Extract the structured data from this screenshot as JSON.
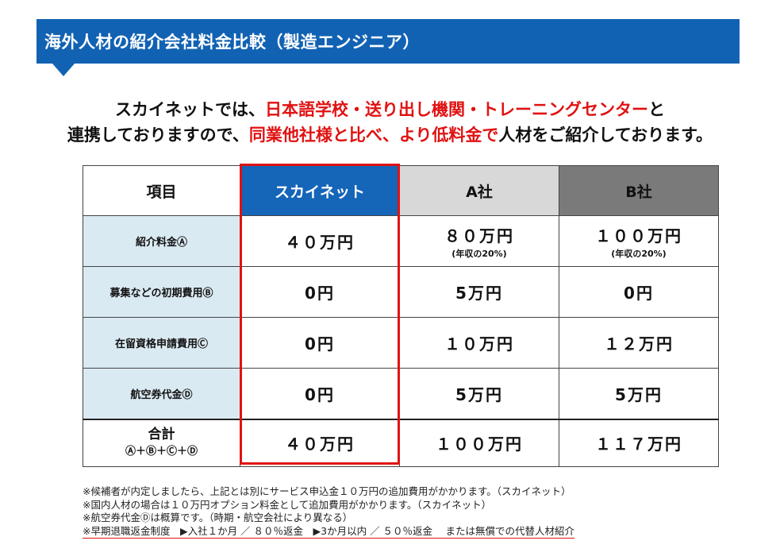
{
  "header": {
    "title": "海外人材の紹介会社料金比較（製造エンジニア）"
  },
  "intro": {
    "line1_a": "スカイネットでは、",
    "line1_red": "日本語学校・送り出し機関・トレーニングセンター",
    "line1_b": "と",
    "line2_a": "連携しておりますので、",
    "line2_red": "同業他社様と比べ、より低料金で",
    "line2_b": "人材をご紹介しております。"
  },
  "table": {
    "headers": {
      "item": "項目",
      "skynet": "スカイネット",
      "a": "A社",
      "b": "B社"
    },
    "rows": [
      {
        "label": "紹介料金Ⓐ",
        "skynet": "４０万円",
        "a": "８０万円",
        "a_sub": "(年収の20%)",
        "b": "１００万円",
        "b_sub": "(年収の20%)"
      },
      {
        "label": "募集などの初期費用Ⓑ",
        "skynet": "0円",
        "a": "5万円",
        "b": "0円"
      },
      {
        "label": "在留資格申請費用Ⓒ",
        "skynet": "0円",
        "a": "１０万円",
        "b": "１２万円"
      },
      {
        "label": "航空券代金Ⓓ",
        "skynet": "0円",
        "a": "5万円",
        "b": "5万円"
      }
    ],
    "total": {
      "label": "合計",
      "formula": "Ⓐ＋Ⓑ＋Ⓒ＋Ⓓ",
      "skynet": "４０万円",
      "a": "１００万円",
      "b": "１１７万円"
    }
  },
  "notes": [
    "※候補者が内定しましたら、上記とは別にサービス申込金１０万円の追加費用がかかります。（スカイネット）",
    "※国内人材の場合は１０万円オプション料金として追加費用がかかります。（スカイネット）",
    "※航空券代金Ⓓは概算です。（時期・航空会社により異なる）",
    "※早期退職返金制度　▶入社１か月 ／ ８０％返金　▶3か月以内 ／ ５０％返金　 または無償での代替人材紹介"
  ],
  "colors": {
    "accent_blue": "#1262b3",
    "highlight_red": "#e01212",
    "row_head_bg": "#daeaf2"
  }
}
